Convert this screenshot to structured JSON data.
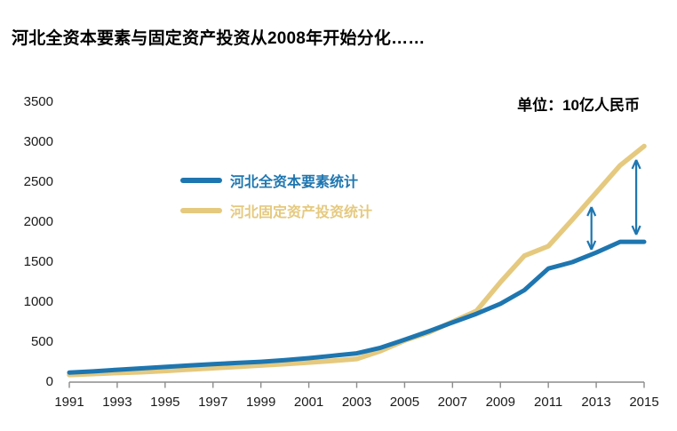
{
  "title": {
    "text": "河北全资本要素与固定资产投资从2008年开始分化……"
  },
  "unit_label": "单位：10亿人民币",
  "colors": {
    "capital_line": "#1E76B0",
    "investment_line": "#E5C97E",
    "axis": "#8C8C8C",
    "arrow": "#1E76B0",
    "text": "#1A1A1A",
    "title_text": "#000000",
    "background": "#FFFFFF"
  },
  "legend": [
    {
      "label": "河北全资本要素统计",
      "color": "#1E76B0"
    },
    {
      "label": "河北固定资产投资统计",
      "color": "#E5C97E"
    }
  ],
  "chart_data": {
    "type": "line",
    "x": [
      1991,
      1992,
      1993,
      1994,
      1995,
      1996,
      1997,
      1998,
      1999,
      2000,
      2001,
      2002,
      2003,
      2004,
      2005,
      2006,
      2007,
      2008,
      2009,
      2010,
      2011,
      2012,
      2013,
      2014,
      2015
    ],
    "series": [
      {
        "name": "河北全资本要素统计",
        "color": "#1E76B0",
        "values": [
          120,
          135,
          155,
          172,
          190,
          208,
          225,
          240,
          255,
          275,
          300,
          330,
          360,
          430,
          530,
          635,
          745,
          855,
          980,
          1150,
          1420,
          1500,
          1620,
          1755,
          1755
        ]
      },
      {
        "name": "河北固定资产投资统计",
        "color": "#E5C97E",
        "values": [
          90,
          103,
          115,
          126,
          140,
          158,
          175,
          192,
          210,
          227,
          245,
          267,
          290,
          390,
          520,
          620,
          755,
          890,
          1250,
          1580,
          1700,
          2030,
          2370,
          2710,
          2950
        ]
      }
    ],
    "ylim": [
      0,
      3500
    ],
    "y_ticks": [
      0,
      500,
      1000,
      1500,
      2000,
      2500,
      3000,
      3500
    ],
    "x_tick_labels": [
      "1991",
      "1993",
      "1995",
      "1997",
      "1999",
      "2001",
      "2003",
      "2005",
      "2007",
      "2009",
      "2011",
      "2013",
      "2015"
    ],
    "grid": false,
    "legend_position": "inside-upper-left",
    "annotations": [
      {
        "type": "double-arrow",
        "year": 2012.8,
        "value_from": 1656,
        "value_to": 2189
      },
      {
        "type": "double-arrow",
        "year": 2014.67,
        "value_from": 1844,
        "value_to": 2778
      }
    ]
  }
}
